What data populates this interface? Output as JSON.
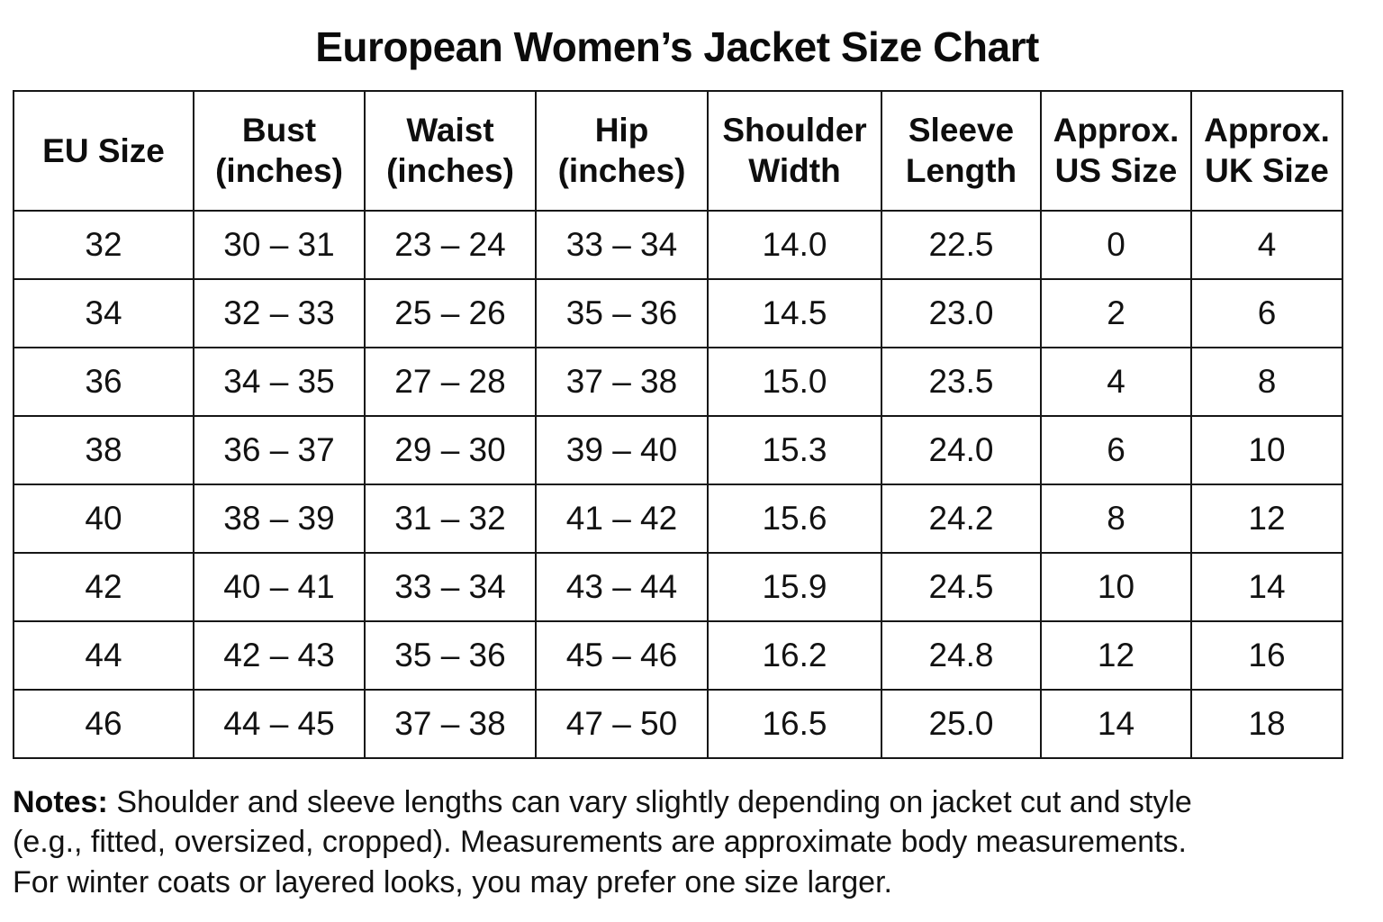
{
  "page": {
    "title": "European Women’s Jacket Size Chart",
    "background_color": "#ffffff",
    "text_color": "#111111",
    "grid_border_color": "#161616"
  },
  "chart_data": {
    "type": "table",
    "title": "European Women’s Jacket Size Chart",
    "columns": [
      "EU Size",
      "Bust\n(inches)",
      "Waist\n(inches)",
      "Hip\n(inches)",
      "Shoulder\nWidth",
      "Sleeve\nLength",
      "Approx.\nUS Size",
      "Approx.\nUK Size"
    ],
    "rows": [
      [
        "32",
        "30 – 31",
        "23 – 24",
        "33 – 34",
        "14.0",
        "22.5",
        "0",
        "4"
      ],
      [
        "34",
        "32 – 33",
        "25 – 26",
        "35 – 36",
        "14.5",
        "23.0",
        "2",
        "6"
      ],
      [
        "36",
        "34 – 35",
        "27 – 28",
        "37 – 38",
        "15.0",
        "23.5",
        "4",
        "8"
      ],
      [
        "38",
        "36 – 37",
        "29 – 30",
        "39 – 40",
        "15.3",
        "24.0",
        "6",
        "10"
      ],
      [
        "40",
        "38 – 39",
        "31 – 32",
        "41 – 42",
        "15.6",
        "24.2",
        "8",
        "12"
      ],
      [
        "42",
        "40 – 41",
        "33 – 34",
        "43 – 44",
        "15.9",
        "24.5",
        "10",
        "14"
      ],
      [
        "44",
        "42 – 43",
        "35 – 36",
        "45 – 46",
        "16.2",
        "24.8",
        "12",
        "16"
      ],
      [
        "46",
        "44 – 45",
        "37 – 38",
        "47 – 50",
        "16.5",
        "25.0",
        "14",
        "18"
      ]
    ]
  },
  "notes": {
    "label": "Notes:",
    "lines": [
      "Shoulder and sleeve lengths can vary slightly depending on jacket cut and style",
      "(e.g., fitted, oversized, cropped). Measurements are approximate body measurements.",
      "For winter coats or layered looks, you may prefer one size larger."
    ]
  }
}
